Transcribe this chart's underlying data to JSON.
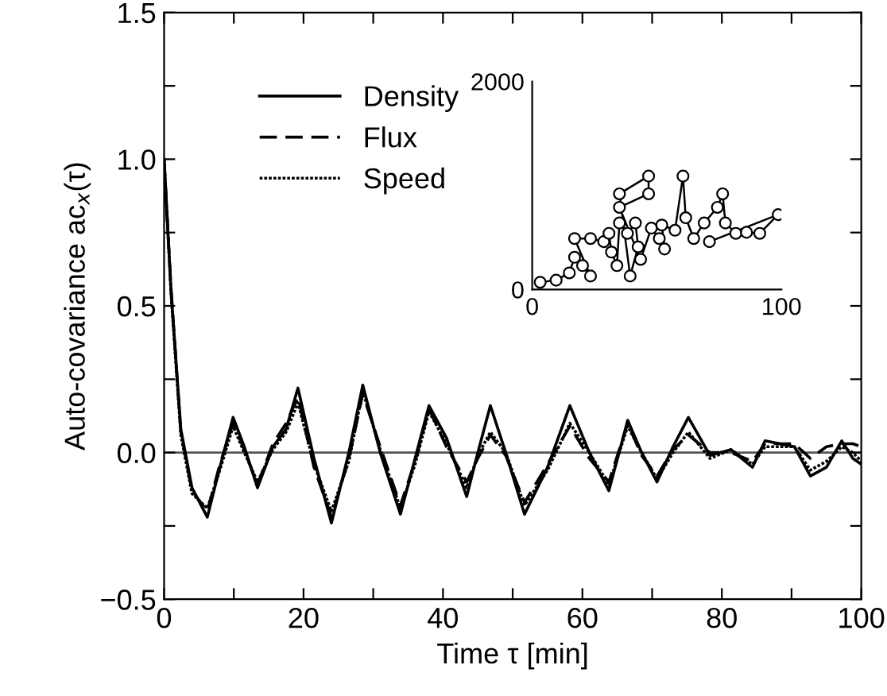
{
  "chart_data": [
    {
      "type": "line",
      "xlabel": "Time τ [min]",
      "ylabel": "Auto-covariance ac$_{x}$(τ)",
      "xlim": [
        0,
        100
      ],
      "ylim": [
        -0.5,
        1.5
      ],
      "xticks": [
        0,
        {
          "value": 10,
          "label": null
        },
        20,
        {
          "value": 30,
          "label": null
        },
        40,
        {
          "value": 50,
          "label": null
        },
        60,
        {
          "value": 70,
          "label": null
        },
        80,
        {
          "value": 90,
          "label": null
        },
        100
      ],
      "yticks": [
        {
          "value": -0.5,
          "label": "−0.5"
        },
        {
          "value": -0.25,
          "label": null
        },
        {
          "value": 0,
          "label": "0.0"
        },
        {
          "value": 0.25,
          "label": null
        },
        {
          "value": 0.5,
          "label": "0.5"
        },
        {
          "value": 0.75,
          "label": null
        },
        {
          "value": 1,
          "label": "1.0"
        },
        {
          "value": 1.25,
          "label": null
        },
        {
          "value": 1.5,
          "label": "1.5"
        }
      ],
      "ref_lines": [
        {
          "axis": "y",
          "value": 0,
          "color": "#555555"
        }
      ],
      "legend": "top left",
      "grid": false,
      "series": [
        {
          "name": "Density",
          "color": "#000000",
          "line_style": "solid",
          "x": [
            0,
            1,
            2.4,
            4,
            6.2,
            8,
            9.9,
            11.5,
            13.4,
            15.6,
            17.5,
            19.2,
            21.5,
            24,
            26.5,
            28.5,
            31,
            33.9,
            36,
            38,
            40.5,
            43.4,
            45,
            46.8,
            49,
            51.7,
            55,
            58.2,
            61,
            63.8,
            66.5,
            68.5,
            70.7,
            73,
            75.2,
            78.3,
            81.3,
            84.4,
            86.2,
            90.4,
            92.7,
            95,
            97.2,
            98.8,
            100
          ],
          "values": [
            1.0,
            0.55,
            0.08,
            -0.12,
            -0.22,
            -0.05,
            0.12,
            0.02,
            -0.12,
            0.02,
            0.08,
            0.22,
            -0.02,
            -0.24,
            0.0,
            0.23,
            0.0,
            -0.21,
            -0.02,
            0.16,
            0.05,
            -0.15,
            0.0,
            0.16,
            0.0,
            -0.21,
            -0.05,
            0.16,
            0.0,
            -0.13,
            0.11,
            0.0,
            -0.1,
            0.02,
            0.12,
            -0.01,
            0.01,
            -0.05,
            0.04,
            0.02,
            -0.08,
            -0.05,
            0.04,
            -0.02,
            -0.04
          ]
        },
        {
          "name": "Flux",
          "color": "#000000",
          "line_style": "dashed",
          "x": [
            0,
            1,
            2.4,
            4,
            6.2,
            8,
            9.9,
            11.5,
            13.4,
            15.6,
            17.5,
            19.2,
            21.5,
            24,
            26.5,
            28.5,
            31,
            33.9,
            36,
            38,
            40.5,
            43.4,
            45,
            46.8,
            49,
            51.7,
            55,
            58.2,
            61,
            63.8,
            66.5,
            68.5,
            70.7,
            73,
            75.2,
            78.3,
            81.3,
            84.4,
            86.2,
            90.4,
            92.7,
            95,
            97.2,
            98.8,
            100
          ],
          "values": [
            1.0,
            0.56,
            0.07,
            -0.13,
            -0.2,
            -0.04,
            0.1,
            0.01,
            -0.11,
            0.03,
            0.1,
            0.19,
            -0.05,
            -0.22,
            -0.02,
            0.2,
            0.02,
            -0.18,
            -0.03,
            0.15,
            0.02,
            -0.1,
            -0.02,
            0.06,
            -0.01,
            -0.17,
            -0.04,
            0.09,
            -0.02,
            -0.1,
            0.1,
            -0.01,
            -0.08,
            0.01,
            0.06,
            0.0,
            0.0,
            -0.03,
            0.03,
            0.03,
            -0.02,
            0.02,
            0.03,
            0.03,
            0.02
          ]
        },
        {
          "name": "Speed",
          "color": "#000000",
          "line_style": "dotted",
          "x": [
            0,
            1,
            2.4,
            4,
            6.2,
            8,
            9.9,
            11.5,
            13.4,
            15.6,
            17.5,
            19.2,
            21.5,
            24,
            26.5,
            28.5,
            31,
            33.9,
            36,
            38,
            40.5,
            43.4,
            45,
            46.8,
            49,
            51.7,
            55,
            58.2,
            61,
            63.8,
            66.5,
            68.5,
            70.7,
            73,
            75.2,
            78.3,
            81.3,
            84.4,
            86.2,
            90.4,
            92.7,
            95,
            97.2,
            98.8,
            100
          ],
          "values": [
            1.0,
            0.54,
            0.06,
            -0.14,
            -0.19,
            -0.06,
            0.09,
            0.0,
            -0.1,
            0.01,
            0.07,
            0.17,
            -0.04,
            -0.2,
            -0.03,
            0.21,
            0.01,
            -0.19,
            -0.04,
            0.14,
            0.03,
            -0.12,
            -0.01,
            0.07,
            0.0,
            -0.18,
            -0.06,
            0.1,
            0.0,
            -0.11,
            0.09,
            0.0,
            -0.09,
            0.0,
            0.07,
            -0.02,
            0.01,
            -0.04,
            0.02,
            0.02,
            -0.06,
            -0.03,
            0.02,
            0.0,
            -0.03
          ]
        }
      ]
    },
    {
      "type": "line",
      "xlim": [
        0,
        100
      ],
      "ylim": [
        0,
        2000
      ],
      "xticks": [
        0,
        100
      ],
      "yticks": [
        0,
        2000
      ],
      "marker": "circle",
      "grid": false,
      "series": [
        {
          "color": "#000000",
          "x": [
            3.2,
            9.6,
            14.9,
            17,
            20.2,
            23.4,
            17,
            23.4,
            28.7,
            30.8,
            31.8,
            34,
            35,
            38.2,
            41.4,
            42.5,
            39.3,
            35,
            46.7,
            46.7,
            35,
            43.5,
            47.8,
            51,
            53.1,
            52,
            57.3,
            60.5,
            61.6,
            64.8,
            69,
            74.3,
            76.4,
            77.5,
            81.7,
            86,
            91.3,
            98.7,
            71.1
          ],
          "values": [
            70,
            90,
            160,
            310,
            230,
            130,
            490,
            490,
            460,
            540,
            360,
            230,
            640,
            540,
            640,
            410,
            130,
            920,
            1090,
            920,
            790,
            290,
            590,
            490,
            390,
            620,
            570,
            1090,
            690,
            490,
            640,
            790,
            920,
            640,
            540,
            550,
            540,
            720,
            460
          ]
        }
      ]
    }
  ]
}
